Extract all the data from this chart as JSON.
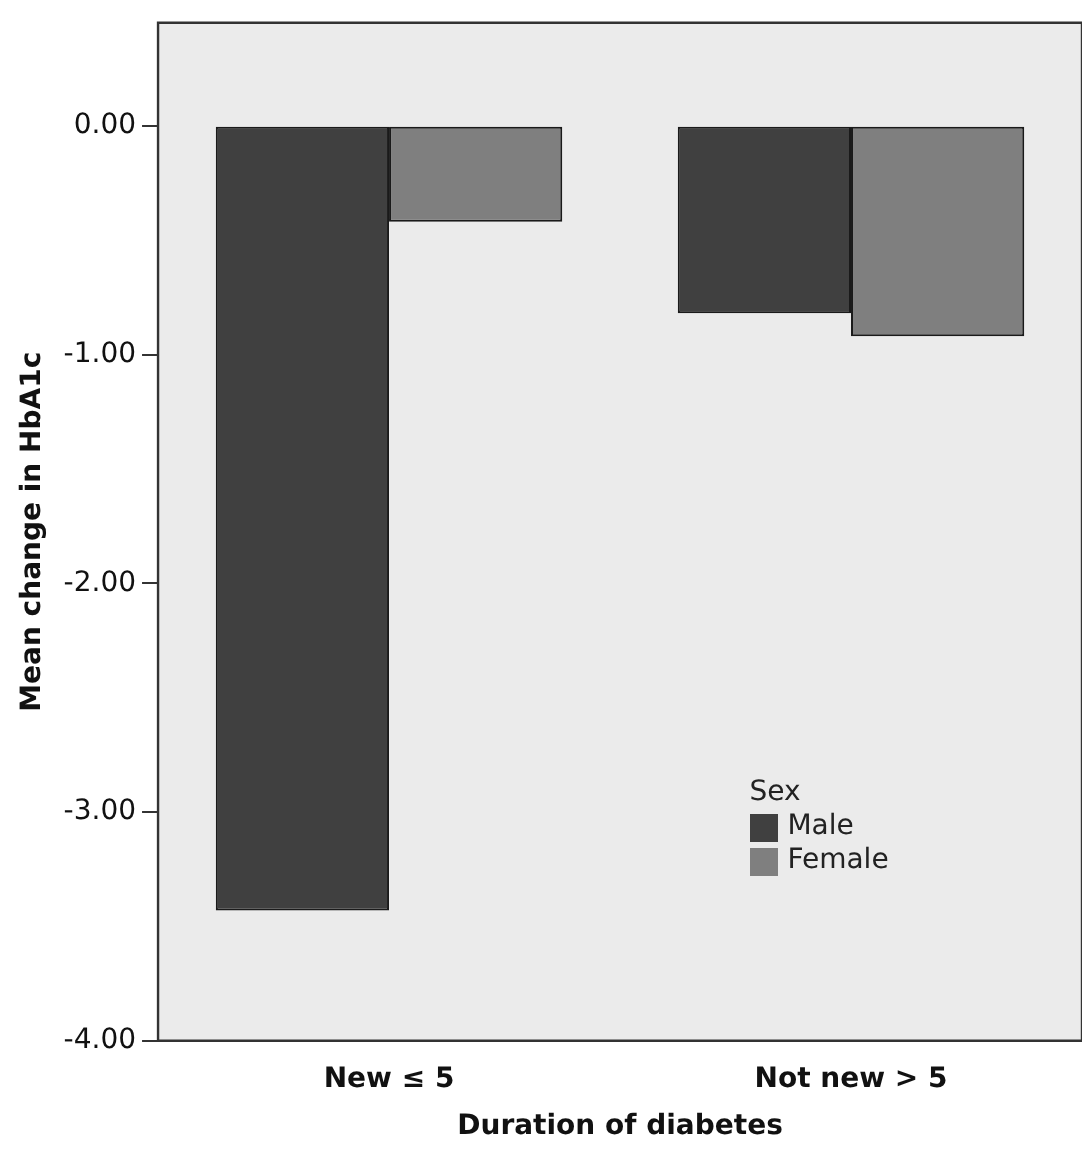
{
  "chart_data": {
    "type": "bar",
    "xlabel": "Duration of diabetes",
    "ylabel": "Mean change in HbA1c",
    "categories": [
      "New ≤ 5",
      "Not new > 5"
    ],
    "series": [
      {
        "name": "Male",
        "color": "#404040",
        "values": [
          -3.43,
          -0.82
        ]
      },
      {
        "name": "Female",
        "color": "#7f7f7f",
        "values": [
          -0.42,
          -0.92
        ]
      }
    ],
    "ylim": [
      -4,
      0.45
    ],
    "yticks": [
      {
        "value": 0,
        "label": "0.00"
      },
      {
        "value": -1,
        "label": "-1.00"
      },
      {
        "value": -2,
        "label": "-2.00"
      },
      {
        "value": -3,
        "label": "-3.00"
      },
      {
        "value": -4,
        "label": "-4.00"
      }
    ],
    "grid": false,
    "legend": "bottom right",
    "legend_title": "Sex"
  }
}
